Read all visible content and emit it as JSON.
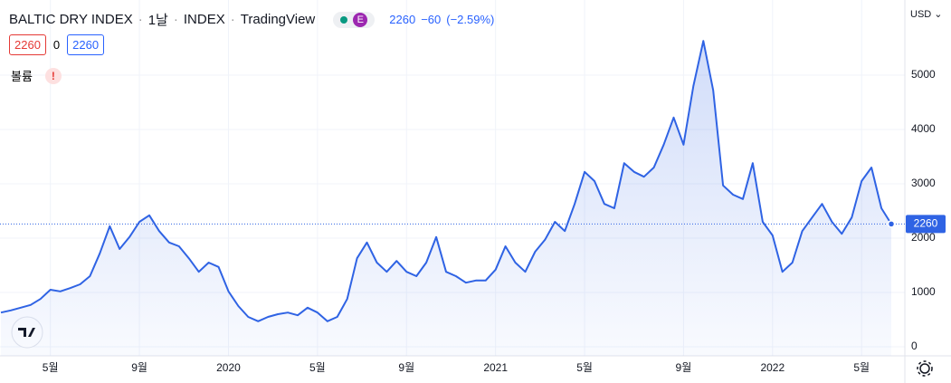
{
  "chart_data": {
    "type": "area",
    "title": "BALTIC DRY INDEX",
    "interval": "1날",
    "exchange": "INDEX",
    "source": "TradingView",
    "badge": "E",
    "change": "−60",
    "change_pct": "(−2.59%)",
    "volume": 0,
    "volume_label": "볼륨",
    "alert": "!",
    "currency": "USD",
    "color": "#2f63e4",
    "categories": [
      null,
      null,
      null,
      null,
      null,
      "5월",
      null,
      null,
      null,
      null,
      null,
      null,
      null,
      null,
      "9월",
      null,
      null,
      null,
      null,
      null,
      null,
      null,
      null,
      "2020",
      null,
      null,
      null,
      null,
      null,
      null,
      null,
      null,
      "5월",
      null,
      null,
      null,
      null,
      null,
      null,
      null,
      null,
      "9월",
      null,
      null,
      null,
      null,
      null,
      null,
      null,
      null,
      "2021",
      null,
      null,
      null,
      null,
      null,
      null,
      null,
      null,
      "5월",
      null,
      null,
      null,
      null,
      null,
      null,
      null,
      null,
      null,
      "9월",
      null,
      null,
      null,
      null,
      null,
      null,
      null,
      null,
      "2022",
      null,
      null,
      null,
      null,
      null,
      null,
      null,
      null,
      "5월",
      null,
      null,
      null
    ],
    "values": [
      630,
      670,
      720,
      770,
      880,
      1050,
      1020,
      1080,
      1150,
      1300,
      1720,
      2220,
      1800,
      2020,
      2300,
      2420,
      2130,
      1920,
      1850,
      1630,
      1380,
      1550,
      1470,
      1020,
      750,
      550,
      470,
      550,
      600,
      630,
      580,
      720,
      630,
      470,
      550,
      880,
      1630,
      1920,
      1550,
      1380,
      1580,
      1380,
      1300,
      1550,
      2020,
      1380,
      1300,
      1180,
      1220,
      1220,
      1420,
      1850,
      1550,
      1380,
      1750,
      1970,
      2300,
      2130,
      2630,
      3220,
      3050,
      2630,
      2550,
      3380,
      3220,
      3130,
      3300,
      3720,
      4220,
      3720,
      4800,
      5630,
      4720,
      2970,
      2800,
      2720,
      3380,
      2300,
      2050,
      1380,
      1550,
      2130,
      2380,
      2630,
      2300,
      2080,
      2380,
      3050,
      3300,
      2550,
      2260
    ],
    "ylim": [
      -167,
      6383
    ],
    "yticks": [
      0,
      1000,
      2000,
      3000,
      4000,
      5000
    ],
    "grid": true
  }
}
